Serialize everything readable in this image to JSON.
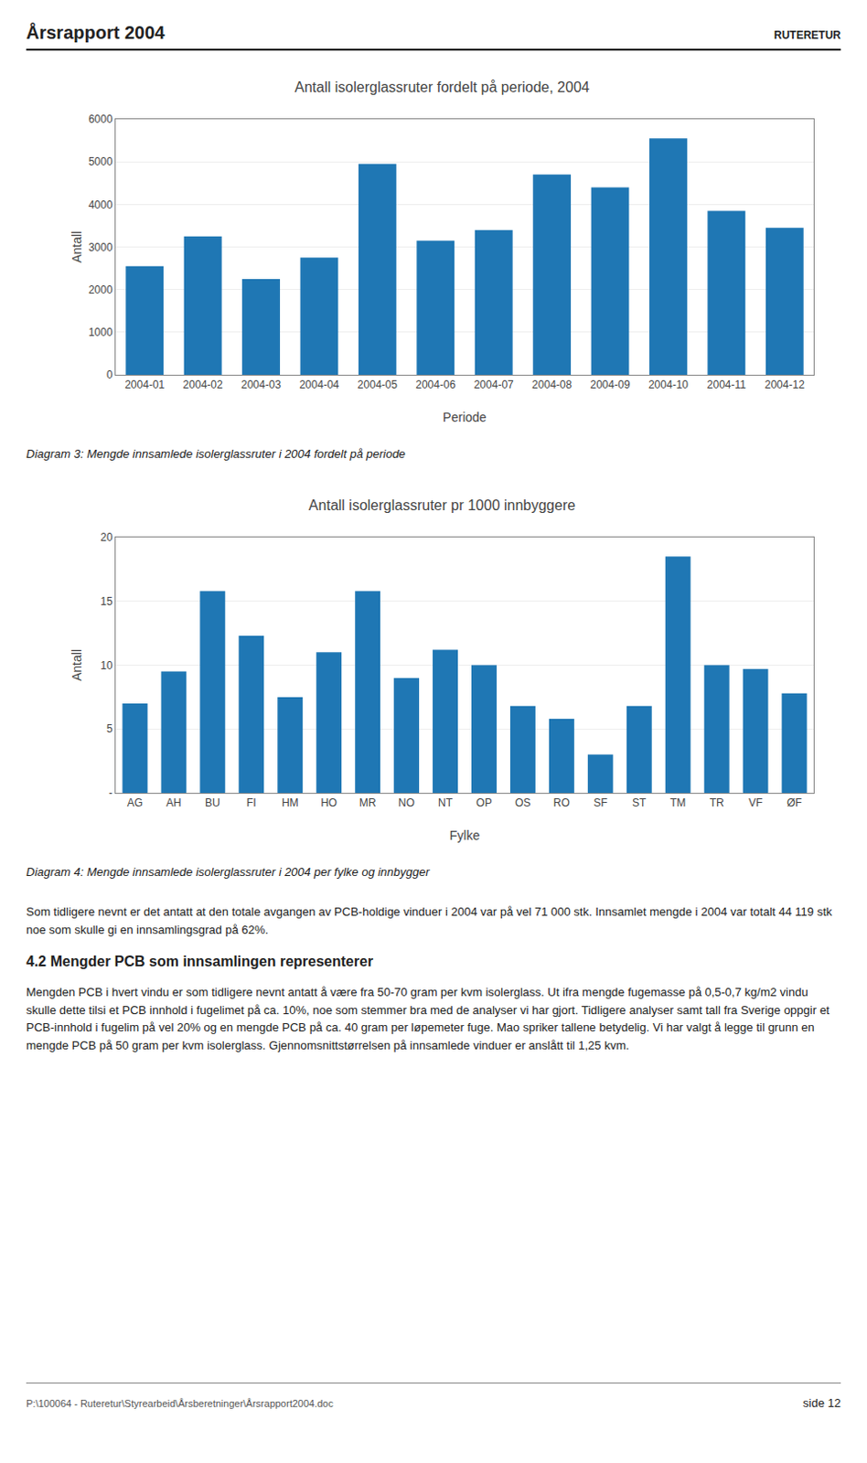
{
  "chart_data": [
    {
      "type": "bar",
      "title": "Antall isolerglassruter fordelt på periode, 2004",
      "xlabel": "Periode",
      "ylabel": "Antall",
      "categories": [
        "2004-01",
        "2004-02",
        "2004-03",
        "2004-04",
        "2004-05",
        "2004-06",
        "2004-07",
        "2004-08",
        "2004-09",
        "2004-10",
        "2004-11",
        "2004-12"
      ],
      "values": [
        2550,
        3250,
        2250,
        2750,
        4950,
        3150,
        3400,
        4700,
        4400,
        5550,
        3850,
        3450
      ],
      "ylim": [
        0,
        6000
      ],
      "yticks": [
        0,
        1000,
        2000,
        3000,
        4000,
        5000,
        6000
      ],
      "grid": true
    },
    {
      "type": "bar",
      "title": "Antall isolerglassruter pr 1000 innbyggere",
      "xlabel": "Fylke",
      "ylabel": "Antall",
      "categories": [
        "AG",
        "AH",
        "BU",
        "FI",
        "HM",
        "HO",
        "MR",
        "NO",
        "NT",
        "OP",
        "OS",
        "RO",
        "SF",
        "ST",
        "TM",
        "TR",
        "VF",
        "ØF"
      ],
      "values": [
        7.0,
        9.5,
        15.8,
        12.3,
        7.5,
        11.0,
        15.8,
        9.0,
        11.2,
        10.0,
        6.8,
        5.8,
        3.0,
        6.8,
        18.5,
        10.0,
        9.7,
        7.8
      ],
      "ylim": [
        0,
        20
      ],
      "yticks": [
        {
          "value": 0,
          "label": "-"
        },
        5,
        10,
        15,
        20
      ],
      "grid": true
    }
  ],
  "header": "Årsrapport 2004",
  "logo": "RUTERETUR",
  "captions": [
    "Diagram 3: Mengde innsamlede isolerglassruter i 2004 fordelt på periode",
    "Diagram 4: Mengde innsamlede isolerglassruter i 2004 per fylke og innbygger"
  ],
  "body": [
    {
      "text": "Som tidligere nevnt er det antatt at den totale avgangen av PCB-holdige vinduer i 2004 var på vel 71 000 stk. Innsamlet mengde i 2004 var totalt 44 119 stk noe som skulle gi en innsamlingsgrad på 62%.",
      "heading": false
    },
    {
      "text": "4.2  Mengder PCB som innsamlingen representerer",
      "heading": true
    },
    {
      "text": "Mengden PCB i hvert vindu er som tidligere nevnt antatt å være fra 50-70 gram per kvm isolerglass. Ut ifra mengde fugemasse på 0,5-0,7 kg/m2 vindu skulle dette tilsi et PCB innhold i fugelimet på ca. 10%, noe som stemmer bra med de analyser vi har gjort. Tidligere analyser samt tall fra Sverige oppgir et PCB-innhold i fugelim på vel 20% og en mengde PCB på ca. 40 gram per løpemeter fuge. Mao spriker tallene betydelig. Vi har valgt å legge til grunn en mengde PCB på 50 gram per kvm isolerglass. Gjennomsnittstørrelsen på innsamlede vinduer er anslått til 1,25 kvm.",
      "heading": false
    }
  ],
  "footer": "P:\\100064 - Ruteretur\\Styrearbeid\\Årsberetninger\\Årsrapport2004.doc",
  "page": "side 12"
}
